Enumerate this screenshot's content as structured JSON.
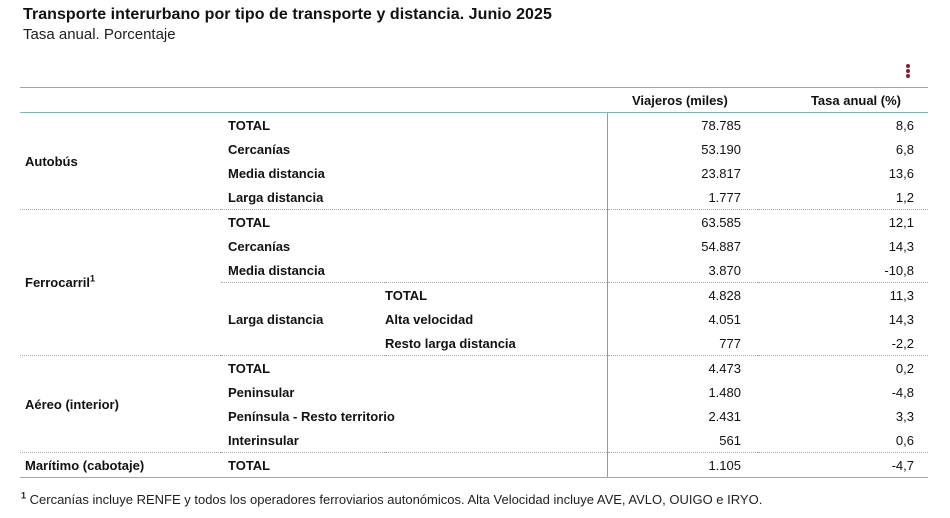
{
  "header": {
    "title": "Transporte interurbano por tipo de transporte y distancia. Junio 2025",
    "subtitle": "Tasa anual. Porcentaje"
  },
  "menu": {
    "icon": "vertical-dots-menu-icon",
    "color": "#8a1c2b"
  },
  "table": {
    "columns": {
      "viajeros": "Viajeros (miles)",
      "tasa": "Tasa anual (%)"
    },
    "groups": {
      "autobus": {
        "label": "Autobús",
        "rows": [
          {
            "label": "TOTAL",
            "viajeros": "78.785",
            "tasa": "8,6"
          },
          {
            "label": "Cercanías",
            "viajeros": "53.190",
            "tasa": "6,8"
          },
          {
            "label": "Media distancia",
            "viajeros": "23.817",
            "tasa": "13,6"
          },
          {
            "label": "Larga distancia",
            "viajeros": "1.777",
            "tasa": "1,2"
          }
        ]
      },
      "ferrocarril": {
        "label": "Ferrocarril",
        "sup": "1",
        "rows": [
          {
            "label": "TOTAL",
            "viajeros": "63.585",
            "tasa": "12,1"
          },
          {
            "label": "Cercanías",
            "viajeros": "54.887",
            "tasa": "14,3"
          },
          {
            "label": "Media distancia",
            "viajeros": "3.870",
            "tasa": "-10,8"
          }
        ],
        "larga": {
          "label": "Larga distancia",
          "rows": [
            {
              "label": "TOTAL",
              "viajeros": "4.828",
              "tasa": "11,3"
            },
            {
              "label": "Alta velocidad",
              "viajeros": "4.051",
              "tasa": "14,3"
            },
            {
              "label": "Resto larga distancia",
              "viajeros": "777",
              "tasa": "-2,2"
            }
          ]
        }
      },
      "aereo": {
        "label": "Aéreo (interior)",
        "rows": [
          {
            "label": "TOTAL",
            "viajeros": "4.473",
            "tasa": "0,2"
          },
          {
            "label": "Peninsular",
            "viajeros": "1.480",
            "tasa": "-4,8"
          },
          {
            "label": "Península - Resto territorio",
            "viajeros": "2.431",
            "tasa": "3,3"
          },
          {
            "label": "Interinsular",
            "viajeros": "561",
            "tasa": "0,6"
          }
        ]
      },
      "maritimo": {
        "label": "Marítimo (cabotaje)",
        "rows": [
          {
            "label": "TOTAL",
            "viajeros": "1.105",
            "tasa": "-4,7"
          }
        ]
      }
    }
  },
  "footnote": {
    "sup": "1",
    "text": " Cercanías incluye RENFE y todos los operadores ferroviarios autonómicos. Alta Velocidad incluye AVE, AVLO, OUIGO e IRYO."
  }
}
